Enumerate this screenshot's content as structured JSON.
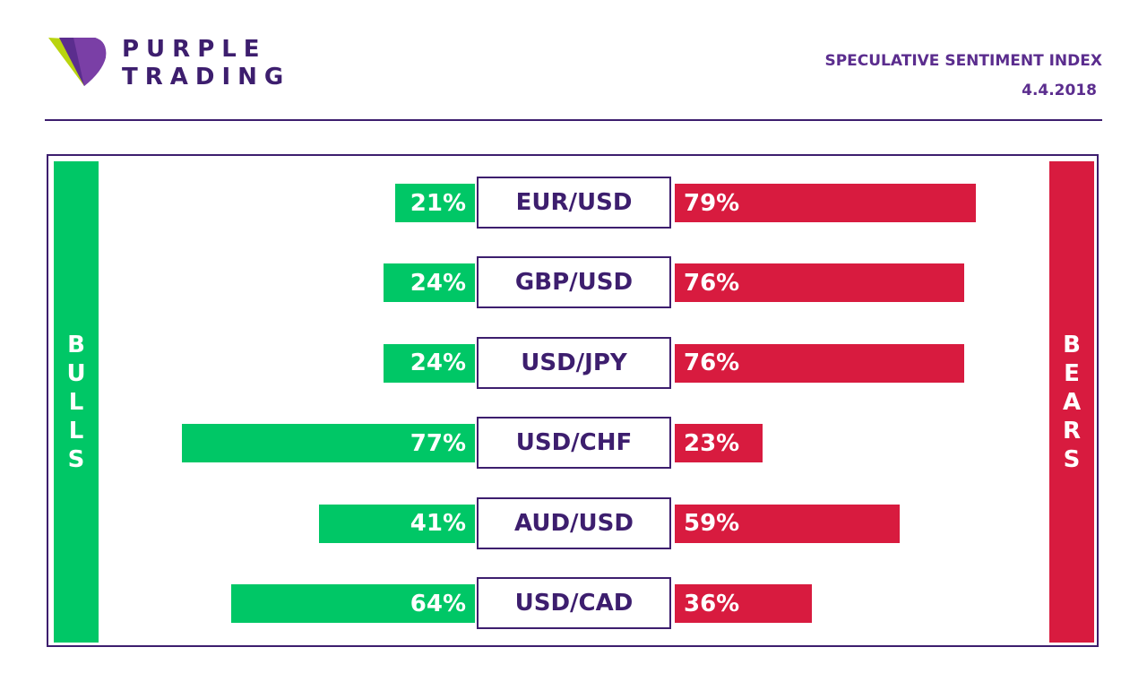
{
  "brand": {
    "line1": "PURPLE",
    "line2": "TRADING"
  },
  "header": {
    "title": "SPECULATIVE SENTIMENT INDEX",
    "date": "4.4.2018"
  },
  "labels": {
    "bulls": "BULLS",
    "bears": "BEARS"
  },
  "colors": {
    "bull": "#00c766",
    "bear": "#d81b3f",
    "purple": "#3d1e6e"
  },
  "chart_data": {
    "type": "bar",
    "categories": [
      "EUR/USD",
      "GBP/USD",
      "USD/JPY",
      "USD/CHF",
      "AUD/USD",
      "USD/CAD"
    ],
    "series": [
      {
        "name": "BULLS",
        "values": [
          21,
          24,
          24,
          77,
          41,
          64
        ]
      },
      {
        "name": "BEARS",
        "values": [
          79,
          76,
          76,
          23,
          59,
          36
        ]
      }
    ],
    "unit": "%"
  }
}
